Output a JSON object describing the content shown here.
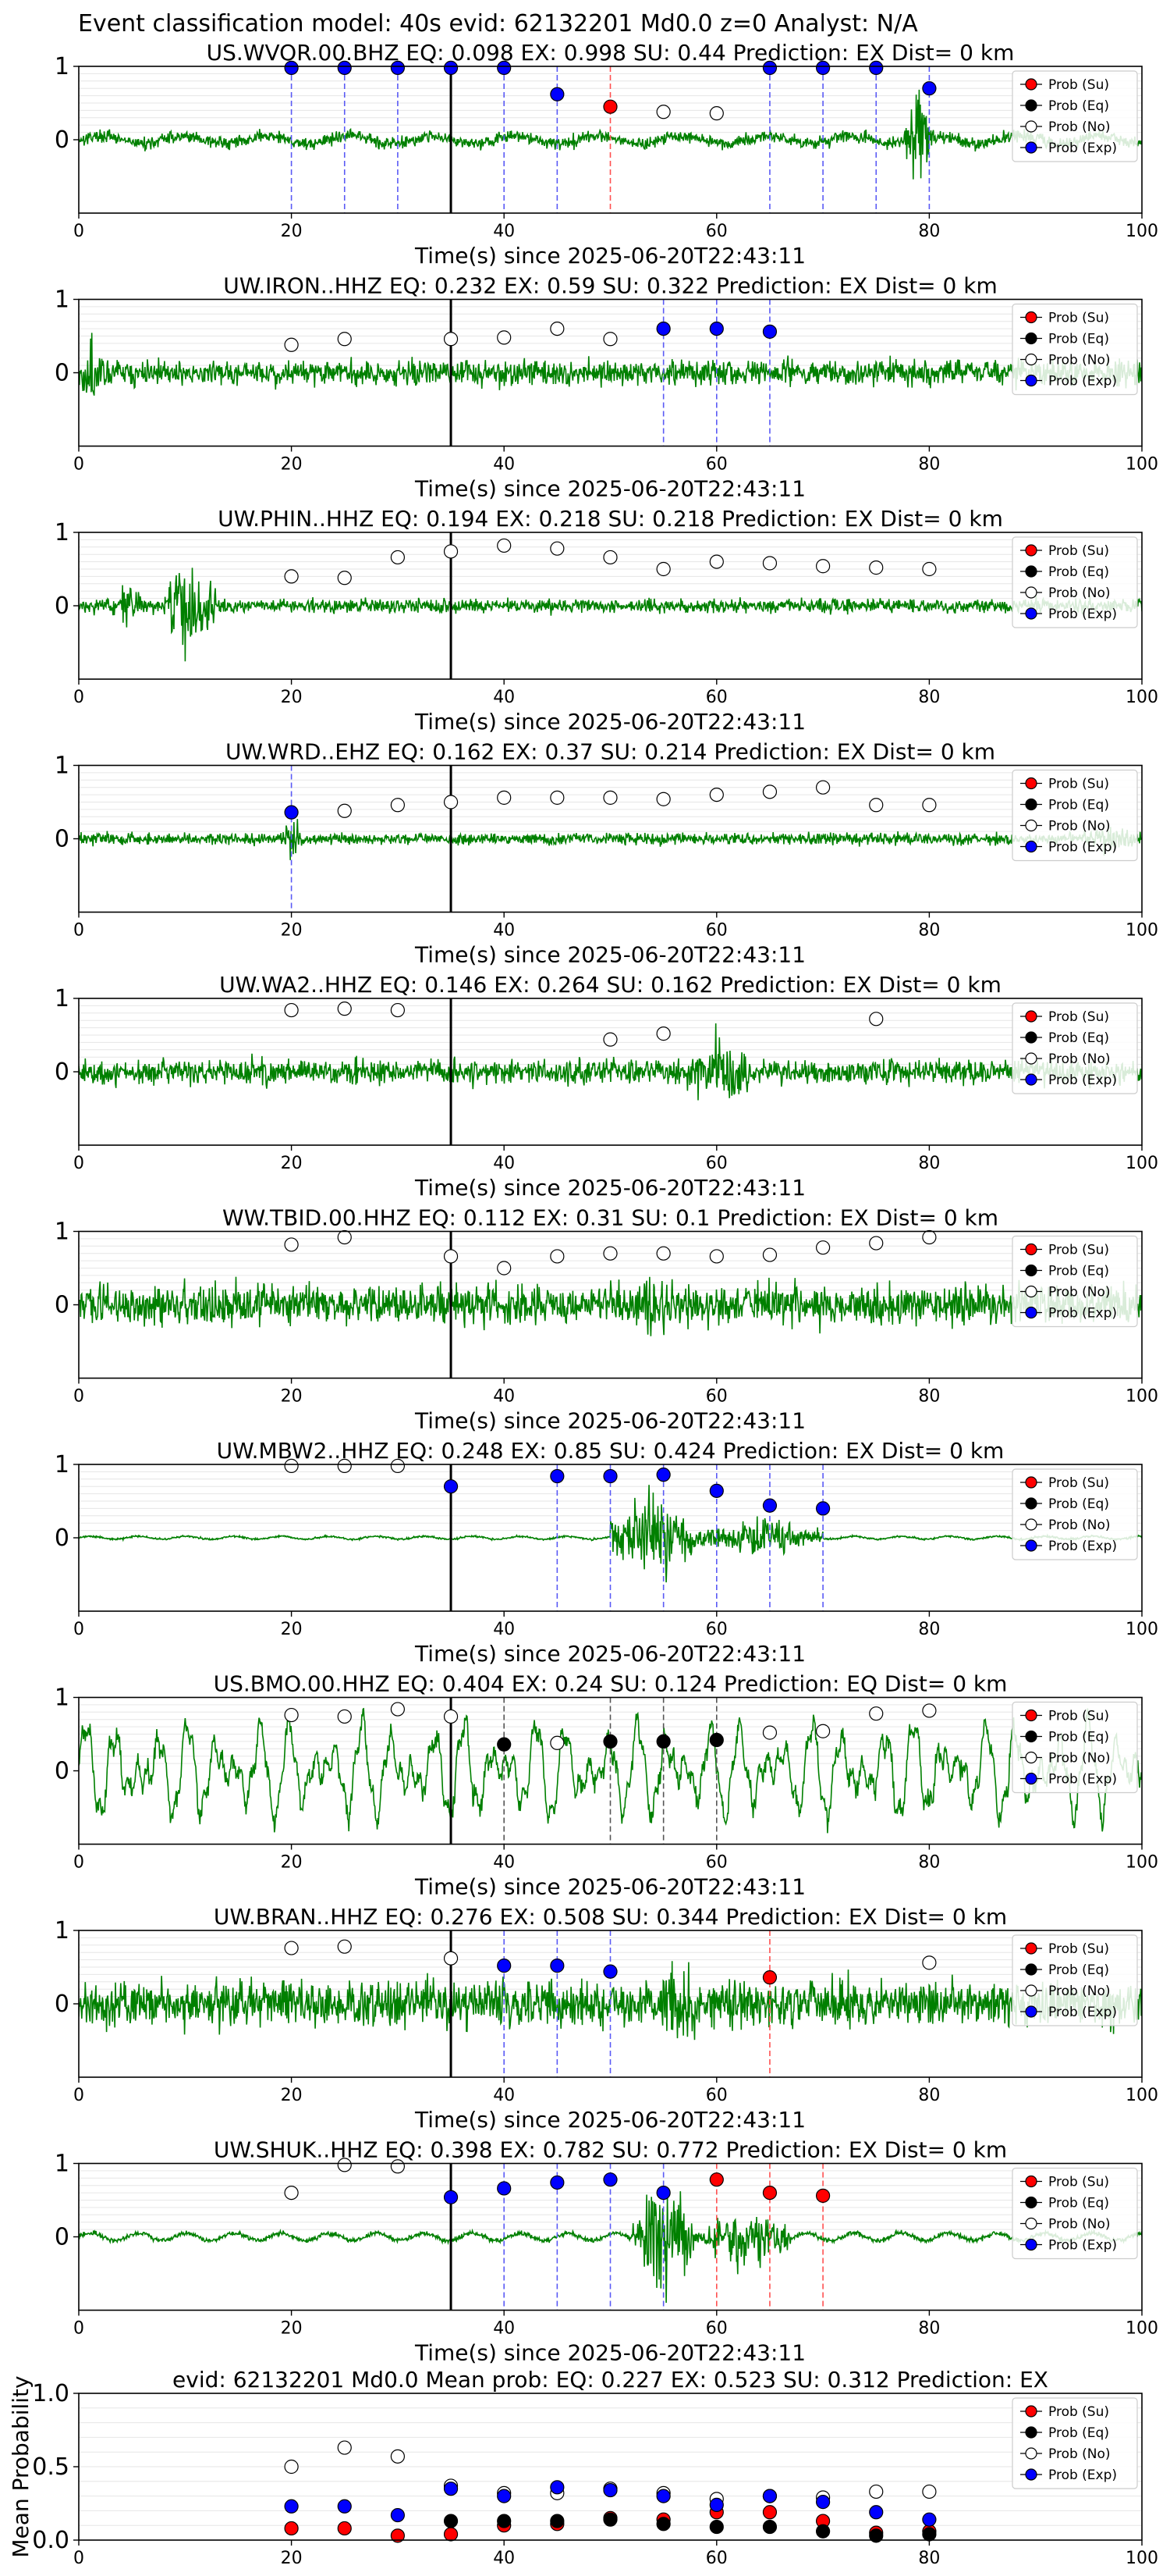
{
  "figure": {
    "suptitle": "Event classification model: 40s evid: 62132201 Md0.0 z=0 Analyst: N/A"
  },
  "colors": {
    "waveform": "#008000",
    "su": "#ff0000",
    "eq": "#000000",
    "no": "#ffffff",
    "exp": "#0000ff",
    "pick": "#000000"
  },
  "legend_labels": [
    "Prob (Su)",
    "Prob (Eq)",
    "Prob (No)",
    "Prob (Exp)"
  ],
  "chart_data": [
    {
      "type": "line",
      "title": "US.WVOR.00.BHZ   EQ: 0.098  EX: 0.998  SU: 0.44   Prediction: EX    Dist= 0 km",
      "xlabel": "Time(s) since 2025-06-20T22:43:11",
      "xlim": [
        0,
        100
      ],
      "ylim": [
        -1,
        1
      ],
      "xticks": [
        0,
        20,
        40,
        60,
        80,
        100
      ],
      "yticks": [
        0,
        1
      ],
      "grid": "horizontal",
      "legend": "top-right",
      "pick_time": 35,
      "waveform": {
        "style": "emergent",
        "amp": 0.12,
        "bursts": [
          [
            77.5,
            80.5,
            0.95
          ]
        ]
      },
      "points": {
        "exp": [
          [
            20,
            0.98
          ],
          [
            25,
            0.98
          ],
          [
            30,
            0.98
          ],
          [
            35,
            0.98
          ],
          [
            40,
            0.98
          ],
          [
            45,
            0.62
          ],
          [
            65,
            0.98
          ],
          [
            70,
            0.98
          ],
          [
            75,
            0.98
          ],
          [
            80,
            0.7
          ]
        ],
        "su": [
          [
            50,
            0.45
          ]
        ],
        "eq": [],
        "no": [
          [
            55,
            0.38
          ],
          [
            60,
            0.36
          ]
        ]
      }
    },
    {
      "type": "line",
      "title": "UW.IRON..HHZ   EQ: 0.232  EX: 0.59  SU: 0.322   Prediction: EX    Dist= 0 km",
      "xlabel": "Time(s) since 2025-06-20T22:43:11",
      "xlim": [
        0,
        100
      ],
      "ylim": [
        -1,
        1
      ],
      "xticks": [
        0,
        20,
        40,
        60,
        80,
        100
      ],
      "yticks": [
        0,
        1
      ],
      "grid": "horizontal",
      "legend": "top-right",
      "pick_time": 35,
      "waveform": {
        "style": "noisy",
        "amp": 0.22,
        "bursts": [
          [
            0,
            2,
            0.9
          ],
          [
            26,
            36,
            0.15
          ],
          [
            70,
            76,
            0.2
          ]
        ]
      },
      "points": {
        "exp": [
          [
            55,
            0.6
          ],
          [
            60,
            0.6
          ],
          [
            65,
            0.56
          ]
        ],
        "su": [],
        "eq": [],
        "no": [
          [
            20,
            0.38
          ],
          [
            25,
            0.46
          ],
          [
            35,
            0.46
          ],
          [
            40,
            0.48
          ],
          [
            45,
            0.6
          ],
          [
            50,
            0.46
          ]
        ]
      }
    },
    {
      "type": "line",
      "title": "UW.PHIN..HHZ   EQ: 0.194  EX: 0.218  SU: 0.218   Prediction: EX    Dist= 0 km",
      "xlabel": "Time(s) since 2025-06-20T22:43:11",
      "xlim": [
        0,
        100
      ],
      "ylim": [
        -1,
        1
      ],
      "xticks": [
        0,
        20,
        40,
        60,
        80,
        100
      ],
      "yticks": [
        0,
        1
      ],
      "grid": "horizontal",
      "legend": "top-right",
      "pick_time": 35,
      "waveform": {
        "style": "noisy",
        "amp": 0.12,
        "bursts": [
          [
            3,
            6,
            0.45
          ],
          [
            8,
            13,
            0.95
          ]
        ]
      },
      "points": {
        "exp": [],
        "su": [],
        "eq": [],
        "no": [
          [
            20,
            0.4
          ],
          [
            25,
            0.38
          ],
          [
            30,
            0.66
          ],
          [
            35,
            0.74
          ],
          [
            40,
            0.82
          ],
          [
            45,
            0.78
          ],
          [
            50,
            0.66
          ],
          [
            55,
            0.5
          ],
          [
            60,
            0.6
          ],
          [
            65,
            0.58
          ],
          [
            70,
            0.54
          ],
          [
            75,
            0.52
          ],
          [
            80,
            0.5
          ]
        ]
      }
    },
    {
      "type": "line",
      "title": "UW.WRD..EHZ   EQ: 0.162  EX: 0.37  SU: 0.214   Prediction: EX    Dist= 0 km",
      "xlabel": "Time(s) since 2025-06-20T22:43:11",
      "xlim": [
        0,
        100
      ],
      "ylim": [
        -1,
        1
      ],
      "xticks": [
        0,
        20,
        40,
        60,
        80,
        100
      ],
      "yticks": [
        0,
        1
      ],
      "grid": "horizontal",
      "legend": "top-right",
      "pick_time": 35,
      "waveform": {
        "style": "noisy",
        "amp": 0.1,
        "bursts": [
          [
            19,
            21,
            0.4
          ],
          [
            94,
            100,
            0.3
          ]
        ]
      },
      "points": {
        "exp": [
          [
            20,
            0.36
          ]
        ],
        "su": [],
        "eq": [],
        "no": [
          [
            25,
            0.38
          ],
          [
            30,
            0.46
          ],
          [
            35,
            0.5
          ],
          [
            40,
            0.56
          ],
          [
            45,
            0.56
          ],
          [
            50,
            0.56
          ],
          [
            55,
            0.54
          ],
          [
            60,
            0.6
          ],
          [
            65,
            0.64
          ],
          [
            70,
            0.7
          ],
          [
            75,
            0.46
          ],
          [
            80,
            0.46
          ]
        ]
      }
    },
    {
      "type": "line",
      "title": "UW.WA2..HHZ   EQ: 0.146  EX: 0.264  SU: 0.162   Prediction: EX    Dist= 0 km",
      "xlabel": "Time(s) since 2025-06-20T22:43:11",
      "xlim": [
        0,
        100
      ],
      "ylim": [
        -1,
        1
      ],
      "xticks": [
        0,
        20,
        40,
        60,
        80,
        100
      ],
      "yticks": [
        0,
        1
      ],
      "grid": "horizontal",
      "legend": "top-right",
      "pick_time": 35,
      "waveform": {
        "style": "noisy",
        "amp": 0.22,
        "bursts": [
          [
            45,
            55,
            0.25
          ],
          [
            57,
            64,
            0.75
          ]
        ]
      },
      "points": {
        "exp": [],
        "su": [],
        "eq": [],
        "no": [
          [
            20,
            0.84
          ],
          [
            25,
            0.86
          ],
          [
            30,
            0.84
          ],
          [
            50,
            0.44
          ],
          [
            55,
            0.52
          ],
          [
            75,
            0.72
          ]
        ]
      }
    },
    {
      "type": "line",
      "title": "WW.TBID.00.HHZ   EQ: 0.112  EX: 0.31  SU: 0.1   Prediction: EX    Dist= 0 km",
      "xlabel": "Time(s) since 2025-06-20T22:43:11",
      "xlim": [
        0,
        100
      ],
      "ylim": [
        -1,
        1
      ],
      "xticks": [
        0,
        20,
        40,
        60,
        80,
        100
      ],
      "yticks": [
        0,
        1
      ],
      "grid": "horizontal",
      "legend": "top-right",
      "pick_time": 35,
      "waveform": {
        "style": "noisy",
        "amp": 0.35,
        "bursts": [
          [
            50,
            58,
            0.6
          ]
        ]
      },
      "points": {
        "exp": [],
        "su": [],
        "eq": [],
        "no": [
          [
            20,
            0.82
          ],
          [
            25,
            0.92
          ],
          [
            35,
            0.66
          ],
          [
            40,
            0.5
          ],
          [
            45,
            0.66
          ],
          [
            50,
            0.7
          ],
          [
            55,
            0.7
          ],
          [
            60,
            0.66
          ],
          [
            65,
            0.68
          ],
          [
            70,
            0.78
          ],
          [
            75,
            0.84
          ],
          [
            80,
            0.92
          ]
        ]
      }
    },
    {
      "type": "line",
      "title": "UW.MBW2..HHZ   EQ: 0.248  EX: 0.85  SU: 0.424   Prediction: EX    Dist= 0 km",
      "xlabel": "Time(s) since 2025-06-20T22:43:11",
      "xlim": [
        0,
        100
      ],
      "ylim": [
        -1,
        1
      ],
      "xticks": [
        0,
        20,
        40,
        60,
        80,
        100
      ],
      "yticks": [
        0,
        1
      ],
      "grid": "horizontal",
      "legend": "top-right",
      "pick_time": 35,
      "waveform": {
        "style": "quiet",
        "amp": 0.02,
        "bursts": [
          [
            50,
            58,
            0.7
          ],
          [
            58,
            70,
            0.3
          ]
        ]
      },
      "points": {
        "exp": [
          [
            35,
            0.7
          ],
          [
            45,
            0.84
          ],
          [
            50,
            0.84
          ],
          [
            55,
            0.86
          ],
          [
            60,
            0.64
          ],
          [
            65,
            0.44
          ],
          [
            70,
            0.4
          ]
        ],
        "su": [],
        "eq": [],
        "no": [
          [
            20,
            0.98
          ],
          [
            25,
            0.98
          ],
          [
            30,
            0.98
          ]
        ]
      }
    },
    {
      "type": "line",
      "title": "US.BMO.00.HHZ   EQ: 0.404  EX: 0.24  SU: 0.124   Prediction: EQ    Dist= 0 km",
      "xlabel": "Time(s) since 2025-06-20T22:43:11",
      "xlim": [
        0,
        100
      ],
      "ylim": [
        -1,
        1
      ],
      "xticks": [
        0,
        20,
        40,
        60,
        80,
        100
      ],
      "yticks": [
        0,
        1
      ],
      "grid": "horizontal",
      "legend": "top-right",
      "pick_time": 35,
      "waveform": {
        "style": "oscillating",
        "amp": 0.65,
        "bursts": []
      },
      "points": {
        "exp": [],
        "su": [],
        "eq": [
          [
            40,
            0.36
          ],
          [
            50,
            0.4
          ],
          [
            55,
            0.4
          ],
          [
            60,
            0.42
          ]
        ],
        "no": [
          [
            20,
            0.76
          ],
          [
            25,
            0.74
          ],
          [
            30,
            0.84
          ],
          [
            35,
            0.74
          ],
          [
            45,
            0.38
          ],
          [
            65,
            0.52
          ],
          [
            70,
            0.54
          ],
          [
            75,
            0.78
          ],
          [
            80,
            0.82
          ]
        ]
      }
    },
    {
      "type": "line",
      "title": "UW.BRAN..HHZ   EQ: 0.276  EX: 0.508  SU: 0.344   Prediction: EX    Dist= 0 km",
      "xlabel": "Time(s) since 2025-06-20T22:43:11",
      "xlim": [
        0,
        100
      ],
      "ylim": [
        -1,
        1
      ],
      "xticks": [
        0,
        20,
        40,
        60,
        80,
        100
      ],
      "yticks": [
        0,
        1
      ],
      "grid": "horizontal",
      "legend": "top-right",
      "pick_time": 35,
      "waveform": {
        "style": "noisy",
        "amp": 0.4,
        "bursts": [
          [
            52,
            60,
            0.8
          ]
        ]
      },
      "points": {
        "exp": [
          [
            40,
            0.52
          ],
          [
            45,
            0.52
          ],
          [
            50,
            0.44
          ]
        ],
        "su": [
          [
            65,
            0.36
          ]
        ],
        "eq": [],
        "no": [
          [
            20,
            0.76
          ],
          [
            25,
            0.78
          ],
          [
            35,
            0.62
          ],
          [
            80,
            0.56
          ]
        ]
      }
    },
    {
      "type": "line",
      "title": "UW.SHUK..HHZ   EQ: 0.398  EX: 0.782  SU: 0.772   Prediction: EX    Dist= 0 km",
      "xlabel": "Time(s) since 2025-06-20T22:43:11",
      "xlim": [
        0,
        100
      ],
      "ylim": [
        -1,
        1
      ],
      "xticks": [
        0,
        20,
        40,
        60,
        80,
        100
      ],
      "yticks": [
        0,
        1
      ],
      "grid": "horizontal",
      "legend": "top-right",
      "pick_time": 35,
      "waveform": {
        "style": "quiet",
        "amp": 0.05,
        "bursts": [
          [
            52,
            58,
            0.95
          ],
          [
            58,
            67,
            0.45
          ]
        ]
      },
      "points": {
        "exp": [
          [
            35,
            0.54
          ],
          [
            40,
            0.66
          ],
          [
            45,
            0.74
          ],
          [
            50,
            0.78
          ],
          [
            55,
            0.6
          ]
        ],
        "su": [
          [
            60,
            0.78
          ],
          [
            65,
            0.6
          ],
          [
            70,
            0.56
          ]
        ],
        "eq": [],
        "no": [
          [
            20,
            0.6
          ],
          [
            25,
            0.98
          ],
          [
            30,
            0.96
          ]
        ]
      }
    },
    {
      "type": "scatter",
      "title": "evid: 62132201  Md0.0   Mean prob:   EQ: 0.227  EX: 0.523  SU: 0.312   Prediction: EX",
      "ylabel": "Mean Probability",
      "xlim": [
        0,
        100
      ],
      "ylim": [
        0,
        1
      ],
      "xticks": [
        0,
        20,
        40,
        60,
        80,
        100
      ],
      "yticks": [
        0.0,
        0.5,
        1.0
      ],
      "grid": "horizontal",
      "legend": "top-right",
      "points": {
        "su": [
          [
            20,
            0.08
          ],
          [
            25,
            0.08
          ],
          [
            30,
            0.03
          ],
          [
            35,
            0.04
          ],
          [
            40,
            0.1
          ],
          [
            45,
            0.11
          ],
          [
            50,
            0.15
          ],
          [
            55,
            0.14
          ],
          [
            60,
            0.19
          ],
          [
            65,
            0.19
          ],
          [
            70,
            0.13
          ],
          [
            75,
            0.05
          ],
          [
            80,
            0.06
          ]
        ],
        "eq": [
          [
            35,
            0.13
          ],
          [
            40,
            0.13
          ],
          [
            45,
            0.13
          ],
          [
            50,
            0.14
          ],
          [
            55,
            0.11
          ],
          [
            60,
            0.09
          ],
          [
            65,
            0.09
          ],
          [
            70,
            0.06
          ],
          [
            75,
            0.03
          ],
          [
            80,
            0.04
          ]
        ],
        "no": [
          [
            20,
            0.5
          ],
          [
            25,
            0.63
          ],
          [
            30,
            0.57
          ],
          [
            35,
            0.37
          ],
          [
            40,
            0.32
          ],
          [
            45,
            0.32
          ],
          [
            50,
            0.35
          ],
          [
            55,
            0.32
          ],
          [
            60,
            0.28
          ],
          [
            65,
            0.3
          ],
          [
            70,
            0.29
          ],
          [
            75,
            0.33
          ],
          [
            80,
            0.33
          ]
        ],
        "exp": [
          [
            20,
            0.23
          ],
          [
            25,
            0.23
          ],
          [
            30,
            0.17
          ],
          [
            35,
            0.35
          ],
          [
            40,
            0.3
          ],
          [
            45,
            0.36
          ],
          [
            50,
            0.34
          ],
          [
            55,
            0.3
          ],
          [
            60,
            0.24
          ],
          [
            65,
            0.3
          ],
          [
            70,
            0.26
          ],
          [
            75,
            0.19
          ],
          [
            80,
            0.14
          ]
        ]
      }
    }
  ]
}
